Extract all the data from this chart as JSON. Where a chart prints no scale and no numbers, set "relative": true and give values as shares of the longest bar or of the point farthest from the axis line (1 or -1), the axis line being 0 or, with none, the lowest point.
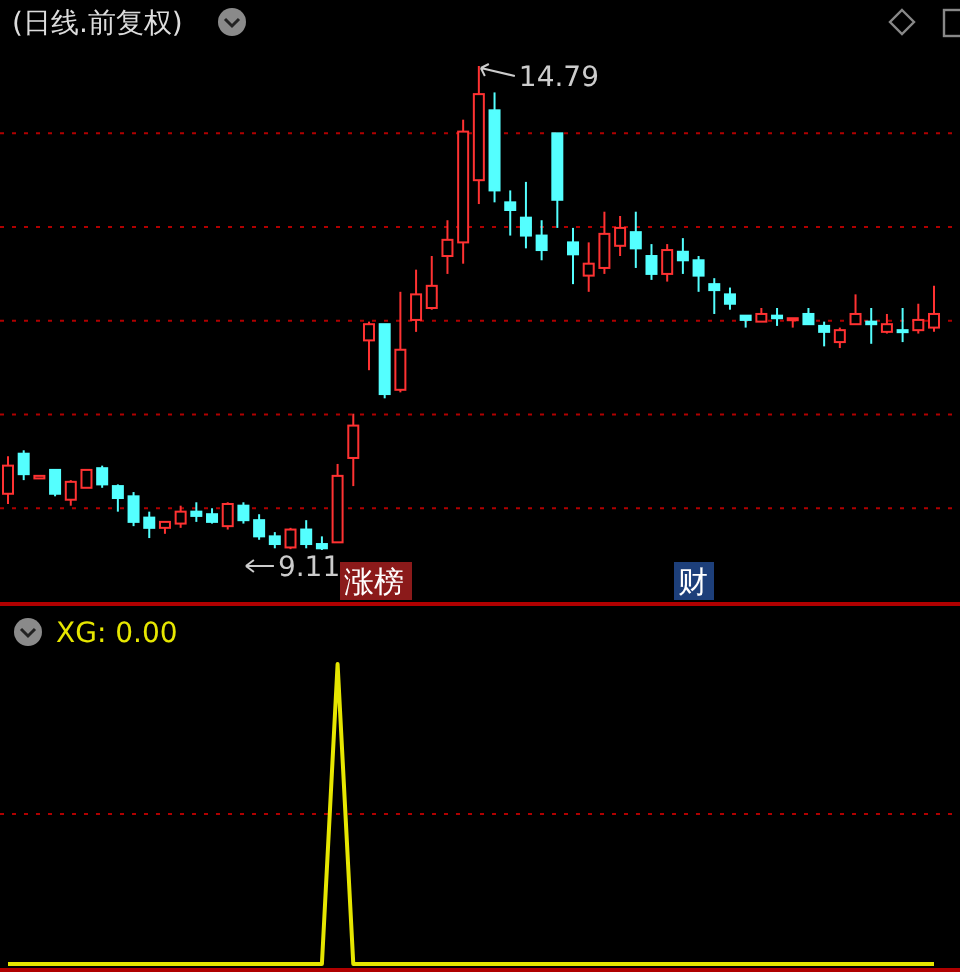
{
  "chart_data": [
    {
      "type": "candlestick",
      "title": "(日线.前复权)",
      "categories": [
        null,
        null,
        null,
        null,
        null,
        null,
        null,
        null,
        null,
        null,
        null,
        null,
        null,
        null,
        null,
        null,
        null,
        null,
        null,
        null,
        null,
        null,
        null,
        null,
        null,
        null,
        null,
        null,
        null,
        null,
        null,
        null,
        null,
        null,
        null,
        null,
        null,
        null,
        null,
        null,
        null,
        null,
        null,
        null,
        null,
        null,
        null,
        null,
        null,
        null,
        null,
        null,
        null,
        null,
        null,
        null,
        null,
        null,
        null,
        null
      ],
      "ohlc": [
        [
          9.77,
          10.21,
          9.65,
          10.1
        ],
        [
          10.24,
          10.28,
          9.93,
          10.0
        ],
        [
          9.95,
          9.98,
          9.95,
          9.98
        ],
        [
          10.05,
          10.05,
          9.74,
          9.77
        ],
        [
          9.7,
          9.93,
          9.63,
          9.91
        ],
        [
          9.84,
          10.05,
          9.84,
          10.05
        ],
        [
          10.07,
          10.1,
          9.84,
          9.88
        ],
        [
          9.86,
          9.88,
          9.56,
          9.72
        ],
        [
          9.74,
          9.79,
          9.39,
          9.44
        ],
        [
          9.49,
          9.56,
          9.25,
          9.37
        ],
        [
          9.37,
          9.44,
          9.3,
          9.44
        ],
        [
          9.42,
          9.63,
          9.37,
          9.56
        ],
        [
          9.56,
          9.67,
          9.44,
          9.51
        ],
        [
          9.53,
          9.6,
          9.42,
          9.44
        ],
        [
          9.39,
          9.67,
          9.35,
          9.65
        ],
        [
          9.63,
          9.67,
          9.42,
          9.46
        ],
        [
          9.46,
          9.53,
          9.23,
          9.27
        ],
        [
          9.27,
          9.32,
          9.13,
          9.18
        ],
        [
          9.14,
          9.37,
          9.12,
          9.35
        ],
        [
          9.35,
          9.46,
          9.13,
          9.18
        ],
        [
          9.18,
          9.27,
          9.11,
          9.13
        ],
        [
          9.2,
          10.12,
          9.2,
          9.98
        ],
        [
          10.19,
          10.71,
          9.86,
          10.57
        ],
        [
          11.57,
          11.79,
          11.22,
          11.76
        ],
        [
          11.76,
          11.76,
          10.89,
          10.94
        ],
        [
          10.99,
          12.14,
          10.96,
          11.46
        ],
        [
          11.81,
          12.4,
          11.67,
          12.11
        ],
        [
          11.95,
          12.56,
          11.93,
          12.21
        ],
        [
          12.56,
          12.98,
          12.35,
          12.75
        ],
        [
          12.72,
          14.16,
          12.47,
          14.02
        ],
        [
          13.45,
          14.79,
          13.17,
          14.46
        ],
        [
          14.27,
          14.48,
          13.19,
          13.33
        ],
        [
          13.19,
          13.33,
          12.8,
          13.1
        ],
        [
          13.01,
          13.43,
          12.65,
          12.8
        ],
        [
          12.8,
          12.98,
          12.51,
          12.63
        ],
        [
          14.0,
          14.0,
          12.89,
          13.22
        ],
        [
          12.72,
          12.89,
          12.23,
          12.58
        ],
        [
          12.33,
          12.72,
          12.14,
          12.47
        ],
        [
          12.42,
          13.08,
          12.35,
          12.82
        ],
        [
          12.68,
          13.03,
          12.56,
          12.89
        ],
        [
          12.84,
          13.08,
          12.42,
          12.65
        ],
        [
          12.56,
          12.7,
          12.28,
          12.35
        ],
        [
          12.35,
          12.7,
          12.26,
          12.63
        ],
        [
          12.61,
          12.77,
          12.35,
          12.51
        ],
        [
          12.51,
          12.56,
          12.14,
          12.33
        ],
        [
          12.23,
          12.3,
          11.88,
          12.16
        ],
        [
          12.11,
          12.19,
          11.93,
          12.0
        ],
        [
          11.86,
          11.86,
          11.72,
          11.81
        ],
        [
          11.79,
          11.95,
          11.79,
          11.88
        ],
        [
          11.86,
          11.95,
          11.74,
          11.83
        ],
        [
          11.81,
          11.83,
          11.72,
          11.83
        ],
        [
          11.88,
          11.95,
          11.76,
          11.76
        ],
        [
          11.74,
          11.79,
          11.5,
          11.67
        ],
        [
          11.55,
          11.72,
          11.48,
          11.69
        ],
        [
          11.76,
          12.11,
          11.76,
          11.88
        ],
        [
          11.79,
          11.95,
          11.53,
          11.76
        ],
        [
          11.67,
          11.88,
          11.65,
          11.76
        ],
        [
          11.69,
          11.95,
          11.55,
          11.67
        ],
        [
          11.69,
          12.0,
          11.65,
          11.81
        ],
        [
          11.72,
          12.21,
          11.67,
          11.88
        ]
      ],
      "colors": [
        "#ff3232",
        "#54ffff",
        "#ff3232",
        "#54ffff",
        "#ff3232",
        "#ff3232",
        "#54ffff",
        "#54ffff",
        "#54ffff",
        "#54ffff",
        "#ff3232",
        "#ff3232",
        "#54ffff",
        "#54ffff",
        "#ff3232",
        "#54ffff",
        "#54ffff",
        "#54ffff",
        "#ff3232",
        "#54ffff",
        "#54ffff",
        "#ff3232",
        "#ff3232",
        "#ff3232",
        "#54ffff",
        "#ff3232",
        "#ff3232",
        "#ff3232",
        "#ff3232",
        "#ff3232",
        "#ff3232",
        "#54ffff",
        "#54ffff",
        "#54ffff",
        "#54ffff",
        "#54ffff",
        "#54ffff",
        "#ff3232",
        "#ff3232",
        "#ff3232",
        "#54ffff",
        "#54ffff",
        "#ff3232",
        "#54ffff",
        "#54ffff",
        "#54ffff",
        "#54ffff",
        "#54ffff",
        "#ff3232",
        "#54ffff",
        "#ff3232",
        "#54ffff",
        "#54ffff",
        "#ff3232",
        "#ff3232",
        "#54ffff",
        "#ff3232",
        "#54ffff",
        "#ff3232",
        "#ff3232"
      ],
      "yticks": [
        {
          "value": 14.0,
          "label": null
        },
        {
          "value": 12.9,
          "label": null
        },
        {
          "value": 11.8,
          "label": null
        },
        {
          "value": 10.7,
          "label": null
        },
        {
          "value": 9.6,
          "label": null
        }
      ],
      "grid": "y",
      "annotations": [
        "14.79",
        "9.11",
        "涨榜",
        "财"
      ]
    },
    {
      "type": "line",
      "title": "XG: 0.00",
      "relative": true,
      "categories": [
        null,
        null,
        null,
        null,
        null,
        null,
        null,
        null,
        null,
        null,
        null,
        null,
        null,
        null,
        null,
        null,
        null,
        null,
        null,
        null,
        null,
        null,
        null,
        null,
        null,
        null,
        null,
        null,
        null,
        null,
        null,
        null,
        null,
        null,
        null,
        null,
        null,
        null,
        null,
        null,
        null,
        null,
        null,
        null,
        null,
        null,
        null,
        null,
        null,
        null,
        null,
        null,
        null,
        null,
        null,
        null,
        null,
        null,
        null,
        null
      ],
      "series": [
        {
          "color": "#e6e600",
          "values": [
            0,
            0,
            0,
            0,
            0,
            0,
            0,
            0,
            0,
            0,
            0,
            0,
            0,
            0,
            0,
            0,
            0,
            0,
            0,
            0,
            0,
            1,
            0,
            0,
            0,
            0,
            0,
            0,
            0,
            0,
            0,
            0,
            0,
            0,
            0,
            0,
            0,
            0,
            0,
            0,
            0,
            0,
            0,
            0,
            0,
            0,
            0,
            0,
            0,
            0,
            0,
            0,
            0,
            0,
            0,
            0,
            0,
            0,
            0,
            0
          ]
        }
      ],
      "ref_lines": [
        {
          "axis": "y",
          "value": 0.5,
          "color": "#b00000",
          "line_style": "dotted"
        }
      ]
    }
  ]
}
